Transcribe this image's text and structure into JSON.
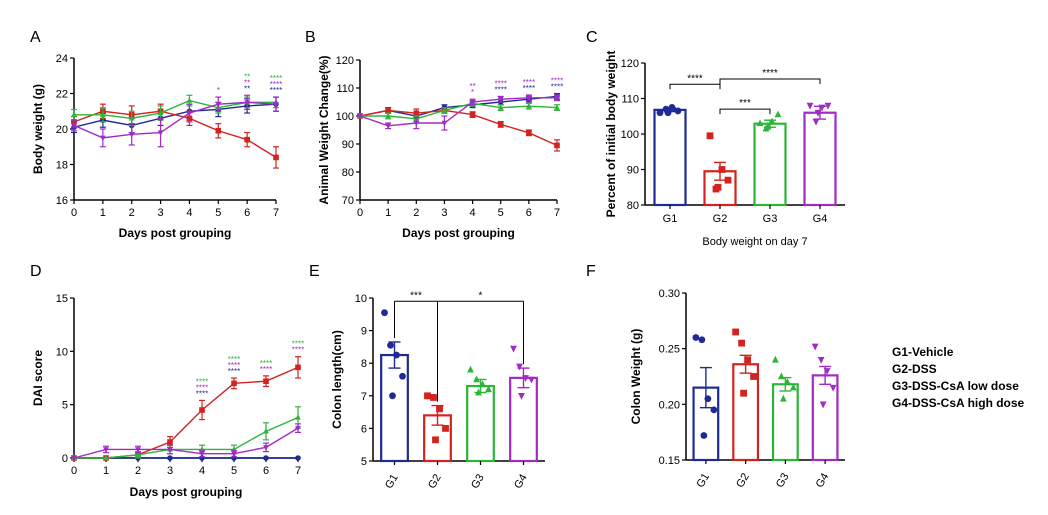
{
  "colors": {
    "G1": "#1f2a96",
    "G2": "#d2231f",
    "G3": "#2db53a",
    "G4": "#a12bc4"
  },
  "legend": [
    "G1-Vehicle",
    "G2-DSS",
    "G3-DSS-CsA low dose",
    "G4-DSS-CsA high dose"
  ],
  "chart_data": [
    {
      "panel": "A",
      "type": "line",
      "xlabel": "Days post grouping",
      "ylabel": "Body weight (g)",
      "x": [
        0,
        1,
        2,
        3,
        4,
        5,
        6,
        7
      ],
      "xlim": [
        0,
        7
      ],
      "ylim": [
        16,
        24
      ],
      "yticks": [
        16,
        18,
        20,
        22,
        24
      ],
      "series": [
        {
          "name": "G1",
          "values": [
            20.1,
            20.5,
            20.2,
            20.6,
            21.0,
            21.1,
            21.3,
            21.4
          ],
          "err": [
            0.3,
            0.4,
            0.4,
            0.4,
            0.4,
            0.4,
            0.4,
            0.4
          ]
        },
        {
          "name": "G2",
          "values": [
            20.4,
            21.0,
            20.8,
            21.0,
            20.6,
            19.9,
            19.4,
            18.4
          ],
          "err": [
            0.3,
            0.4,
            0.5,
            0.4,
            0.4,
            0.4,
            0.4,
            0.6
          ]
        },
        {
          "name": "G3",
          "values": [
            20.8,
            20.8,
            20.6,
            20.9,
            21.6,
            21.2,
            21.5,
            21.5
          ],
          "err": [
            0.3,
            0.4,
            0.4,
            0.4,
            0.3,
            0.3,
            0.3,
            0.3
          ]
        },
        {
          "name": "G4",
          "values": [
            20.2,
            19.5,
            19.7,
            19.8,
            20.9,
            21.4,
            21.5,
            21.4
          ],
          "err": [
            0.3,
            0.5,
            0.6,
            0.8,
            0.5,
            0.4,
            0.4,
            0.4
          ]
        }
      ],
      "annotations": [
        {
          "x": 5,
          "lines": [
            {
              "t": "*",
              "g": "G4"
            }
          ]
        },
        {
          "x": 6,
          "lines": [
            {
              "t": "**",
              "g": "G3"
            },
            {
              "t": "**",
              "g": "G4"
            },
            {
              "t": "**",
              "g": "G1"
            }
          ]
        },
        {
          "x": 7,
          "lines": [
            {
              "t": "****",
              "g": "G3"
            },
            {
              "t": "****",
              "g": "G4"
            },
            {
              "t": "****",
              "g": "G1"
            }
          ]
        }
      ]
    },
    {
      "panel": "B",
      "type": "line",
      "xlabel": "Days post grouping",
      "ylabel": "Animal Weight Change(%)",
      "x": [
        0,
        1,
        2,
        3,
        4,
        5,
        6,
        7
      ],
      "xlim": [
        0,
        7
      ],
      "ylim": [
        70,
        120
      ],
      "yticks": [
        70,
        80,
        90,
        100,
        110,
        120
      ],
      "series": [
        {
          "name": "G1",
          "values": [
            100,
            102,
            100,
            103,
            104,
            105,
            106,
            107
          ],
          "err": [
            0,
            1,
            1,
            1,
            1,
            1,
            1,
            1
          ]
        },
        {
          "name": "G2",
          "values": [
            100,
            102,
            101,
            102,
            100.5,
            97,
            94,
            89.5
          ],
          "err": [
            0,
            1,
            1.5,
            1,
            1,
            1,
            1,
            2
          ]
        },
        {
          "name": "G3",
          "values": [
            100,
            100,
            99,
            102,
            104.5,
            103,
            103.5,
            103
          ],
          "err": [
            0,
            1,
            1,
            1,
            1,
            1,
            1,
            1
          ]
        },
        {
          "name": "G4",
          "values": [
            100,
            96.5,
            97.5,
            97.5,
            105,
            106,
            106.5,
            106.5
          ],
          "err": [
            0,
            1,
            2,
            2.5,
            1,
            1,
            1,
            1
          ]
        }
      ],
      "annotations": [
        {
          "x": 4,
          "lines": [
            {
              "t": "**",
              "g": "G4"
            },
            {
              "t": "*",
              "g": "G4"
            }
          ]
        },
        {
          "x": 5,
          "lines": [
            {
              "t": "****",
              "g": "G4"
            },
            {
              "t": "****",
              "g": "G1"
            }
          ]
        },
        {
          "x": 6,
          "lines": [
            {
              "t": "****",
              "g": "G4"
            },
            {
              "t": "****",
              "g": "G1"
            }
          ]
        },
        {
          "x": 7,
          "lines": [
            {
              "t": "****",
              "g": "G4"
            },
            {
              "t": "****",
              "g": "G1"
            }
          ]
        }
      ]
    },
    {
      "panel": "C",
      "type": "bar",
      "xlabel": "Body weight on day 7",
      "ylabel": "Percent of initial body weight",
      "categories": [
        "G1",
        "G2",
        "G3",
        "G4"
      ],
      "ylim": [
        80,
        120
      ],
      "yticks": [
        80,
        90,
        100,
        110,
        120
      ],
      "values": [
        106.8,
        89.5,
        102.9,
        106.0
      ],
      "err": [
        0.5,
        2.5,
        1.0,
        1.8
      ],
      "points": [
        [
          106,
          107,
          107.5,
          106.5,
          106
        ],
        [
          99.5,
          84.5,
          90,
          87,
          85
        ],
        [
          103,
          101.5,
          103.5,
          105.5,
          102
        ],
        [
          108,
          103.5,
          107.5,
          108,
          106
        ]
      ],
      "brackets": [
        {
          "a": 0,
          "b": 1,
          "label": "****",
          "level": 114
        },
        {
          "a": 1,
          "b": 2,
          "label": "***",
          "level": 107
        },
        {
          "a": 1,
          "b": 3,
          "label": "****",
          "level": 115.5
        }
      ]
    },
    {
      "panel": "D",
      "type": "line",
      "xlabel": "Days post grouping",
      "ylabel": "DAI score",
      "x": [
        0,
        1,
        2,
        3,
        4,
        5,
        6,
        7
      ],
      "xlim": [
        0,
        7
      ],
      "ylim": [
        0,
        15
      ],
      "yticks": [
        0,
        5,
        10,
        15
      ],
      "series": [
        {
          "name": "G1",
          "values": [
            0,
            0,
            0,
            0,
            0,
            0,
            0,
            0
          ],
          "err": [
            0,
            0,
            0,
            0,
            0,
            0,
            0,
            0
          ]
        },
        {
          "name": "G2",
          "values": [
            0,
            0,
            0.3,
            1.5,
            4.5,
            7,
            7.2,
            8.5
          ],
          "err": [
            0,
            0,
            0.3,
            0.5,
            0.9,
            0.5,
            0.5,
            1.0
          ]
        },
        {
          "name": "G3",
          "values": [
            0,
            0,
            0.3,
            0.8,
            0.8,
            0.8,
            2.5,
            3.8
          ],
          "err": [
            0,
            0,
            0.3,
            0.4,
            0.4,
            0.4,
            0.8,
            1.0
          ]
        },
        {
          "name": "G4",
          "values": [
            0,
            0.8,
            0.8,
            0.8,
            0.4,
            0.4,
            1.0,
            2.8
          ],
          "err": [
            0,
            0.3,
            0.3,
            0.4,
            0.3,
            0.3,
            0.4,
            0.4
          ]
        }
      ],
      "annotations": [
        {
          "x": 4,
          "lines": [
            {
              "t": "****",
              "g": "G3"
            },
            {
              "t": "****",
              "g": "G4"
            },
            {
              "t": "****",
              "g": "G1"
            }
          ]
        },
        {
          "x": 5,
          "lines": [
            {
              "t": "****",
              "g": "G3"
            },
            {
              "t": "****",
              "g": "G4"
            },
            {
              "t": "****",
              "g": "G1"
            }
          ]
        },
        {
          "x": 6,
          "lines": [
            {
              "t": "****",
              "g": "G3"
            },
            {
              "t": "****",
              "g": "G4"
            }
          ]
        },
        {
          "x": 7,
          "lines": [
            {
              "t": "****",
              "g": "G3"
            },
            {
              "t": "****",
              "g": "G4"
            }
          ]
        }
      ]
    },
    {
      "panel": "E",
      "type": "bar",
      "xlabel": "",
      "ylabel": "Colon length(cm)",
      "categories": [
        "G1",
        "G2",
        "G3",
        "G4"
      ],
      "ylim": [
        5,
        10
      ],
      "yticks": [
        5,
        6,
        7,
        8,
        9,
        10
      ],
      "values": [
        8.25,
        6.4,
        7.3,
        7.55
      ],
      "err": [
        0.4,
        0.3,
        0.2,
        0.3
      ],
      "points": [
        [
          9.55,
          8.55,
          8.25,
          7.6,
          7.0
        ],
        [
          7.0,
          6.95,
          6.6,
          6.0,
          5.65
        ],
        [
          7.8,
          7.5,
          7.35,
          7.2,
          7.1
        ],
        [
          8.45,
          7.9,
          7.55,
          7.5,
          7.0
        ]
      ],
      "brackets": [
        {
          "a": 0,
          "b": 1,
          "label": "***",
          "level": 9.9
        },
        {
          "a": 1,
          "b": 3,
          "label": "*",
          "level": 9.9
        }
      ]
    },
    {
      "panel": "F",
      "type": "bar",
      "xlabel": "",
      "ylabel": "Colon Weight (g)",
      "categories": [
        "G1",
        "G2",
        "G3",
        "G4"
      ],
      "ylim": [
        0.15,
        0.3
      ],
      "yticks": [
        0.15,
        0.2,
        0.25,
        0.3
      ],
      "values": [
        0.215,
        0.236,
        0.218,
        0.226
      ],
      "err": [
        0.018,
        0.008,
        0.006,
        0.008
      ],
      "points": [
        [
          0.26,
          0.258,
          0.205,
          0.195,
          0.172
        ],
        [
          0.265,
          0.255,
          0.24,
          0.225,
          0.21
        ],
        [
          0.24,
          0.225,
          0.22,
          0.215,
          0.205
        ],
        [
          0.252,
          0.24,
          0.23,
          0.215,
          0.2
        ]
      ],
      "brackets": []
    }
  ]
}
